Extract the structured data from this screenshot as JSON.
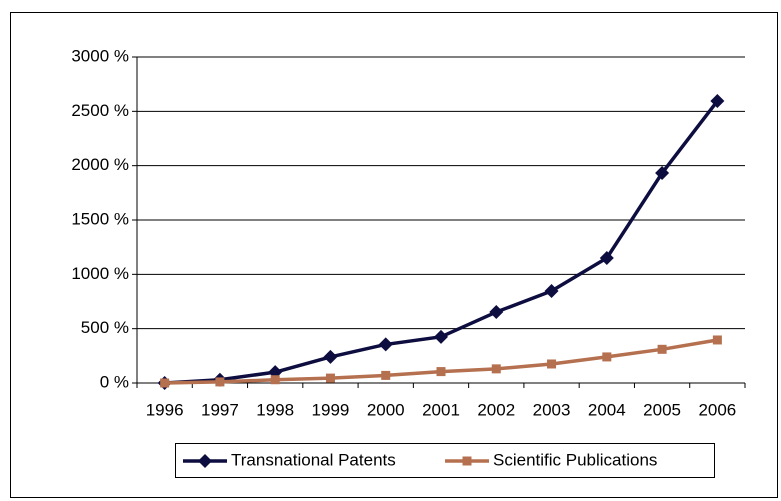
{
  "chart_data": {
    "type": "line",
    "categories": [
      "1996",
      "1997",
      "1998",
      "1999",
      "2000",
      "2001",
      "2002",
      "2003",
      "2004",
      "2005",
      "2006"
    ],
    "series": [
      {
        "name": "Transnational Patents",
        "color": "#0d0d40",
        "marker": "diamond",
        "values": [
          0,
          30,
          100,
          240,
          355,
          425,
          653,
          847,
          1150,
          1932,
          2595
        ]
      },
      {
        "name": "Scientific Publications",
        "color": "#b5704f",
        "marker": "square",
        "values": [
          0,
          10,
          30,
          45,
          70,
          105,
          130,
          175,
          240,
          310,
          396
        ]
      }
    ],
    "ylim": [
      0,
      3000
    ],
    "yticks": [
      {
        "value": 0,
        "label": "0 %"
      },
      {
        "value": 500,
        "label": "500 %"
      },
      {
        "value": 1000,
        "label": "1000 %"
      },
      {
        "value": 1500,
        "label": "1500 %"
      },
      {
        "value": 2000,
        "label": "2000 %"
      },
      {
        "value": 2500,
        "label": "2500 %"
      },
      {
        "value": 3000,
        "label": "3000 %"
      }
    ],
    "grid": true,
    "legend": "bottom"
  }
}
